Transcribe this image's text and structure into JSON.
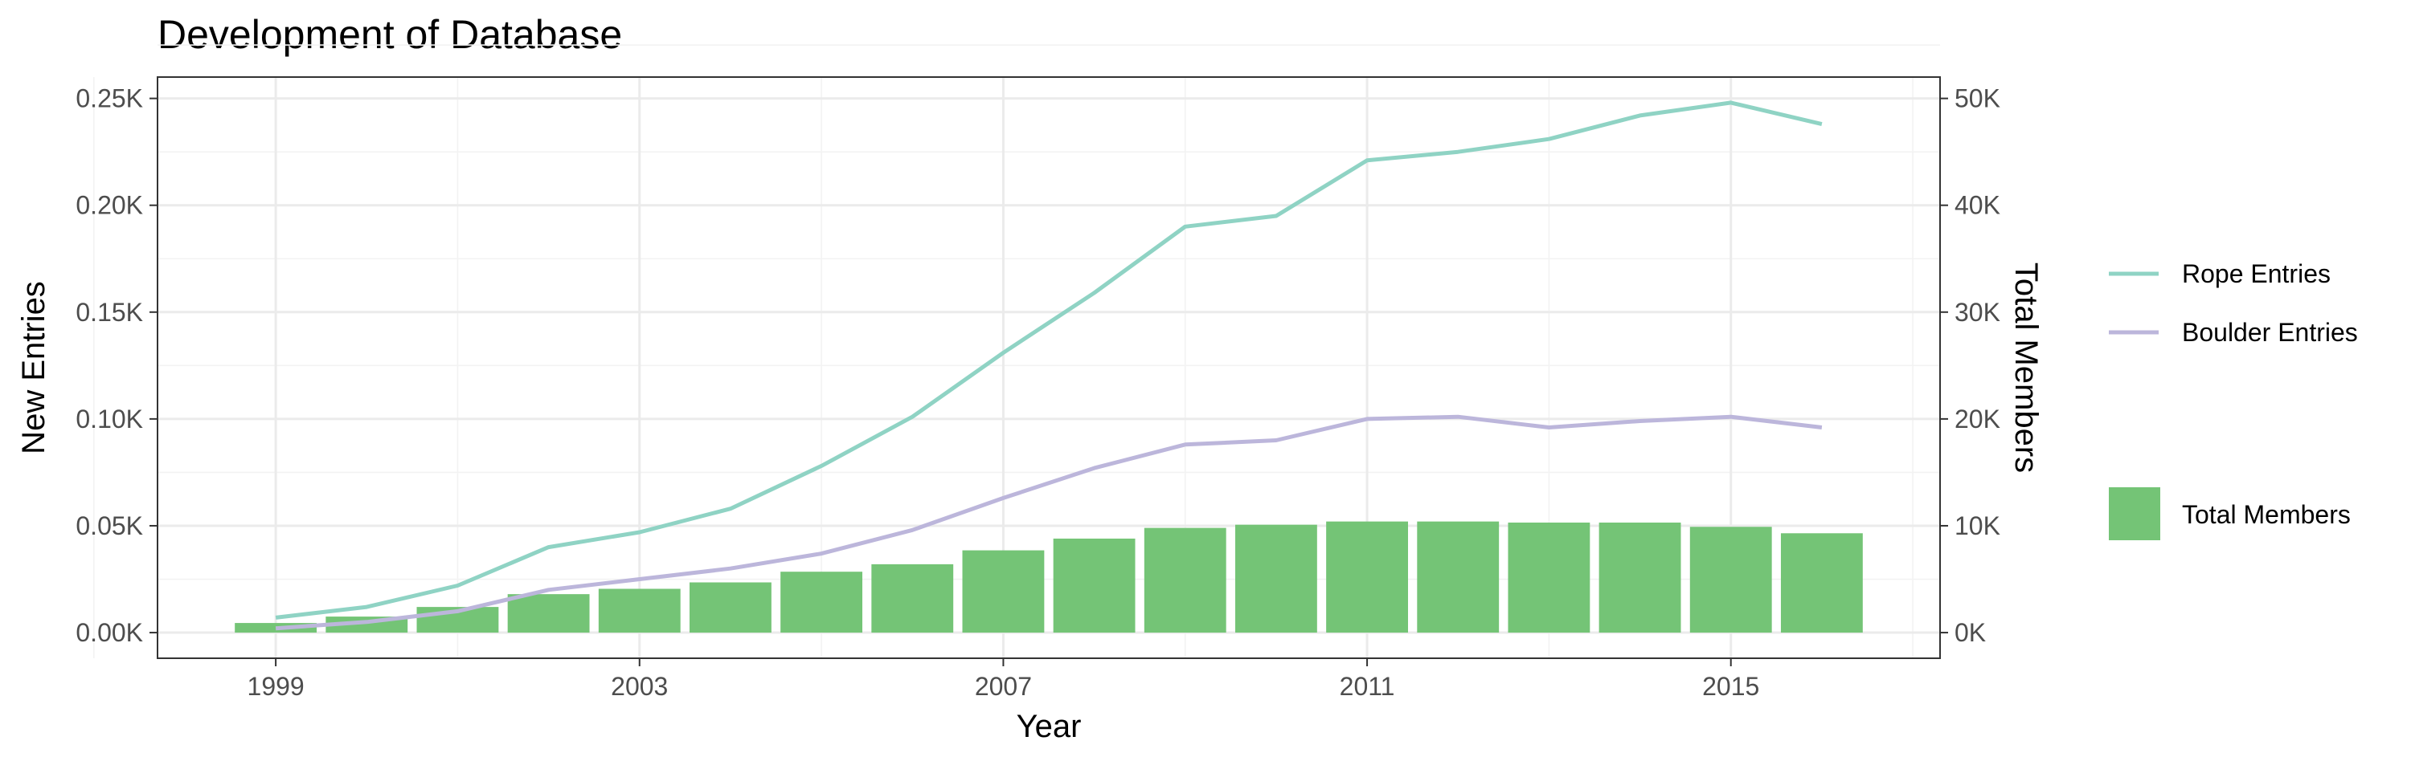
{
  "colors": {
    "rope": "#8fd3c4",
    "boulder": "#bcb6db",
    "members": "#74c476"
  },
  "chart_data": {
    "type": "bar",
    "title": "Development of Database",
    "xlabel": "Year",
    "ylabel": "New Entries",
    "y2label": "Total Members",
    "xlim": [
      1997.7,
      2017.3
    ],
    "ylim": [
      -0.012,
      0.26
    ],
    "y2lim": [
      -2400,
      52000
    ],
    "x_ticks": [
      1999,
      2003,
      2007,
      2011,
      2015
    ],
    "x_tick_labels": [
      "1999",
      "2003",
      "2007",
      "2011",
      "2015"
    ],
    "y_ticks": [
      0,
      0.05,
      0.1,
      0.15,
      0.2,
      0.25
    ],
    "y_tick_labels": [
      "0.00K",
      "0.05K",
      "0.10K",
      "0.15K",
      "0.20K",
      "0.25K"
    ],
    "y2_ticks": [
      0,
      10000,
      20000,
      30000,
      40000,
      50000
    ],
    "y2_tick_labels": [
      "0K",
      "10K",
      "20K",
      "30K",
      "40K",
      "50K"
    ],
    "x": [
      1999,
      2000,
      2001,
      2002,
      2003,
      2004,
      2005,
      2006,
      2007,
      2008,
      2009,
      2010,
      2011,
      2012,
      2013,
      2014,
      2015,
      2016
    ],
    "series": [
      {
        "name": "Rope Entries",
        "kind": "line",
        "axis": "left",
        "color_key": "rope",
        "values": [
          0.007,
          0.012,
          0.022,
          0.04,
          0.047,
          0.058,
          0.078,
          0.101,
          0.131,
          0.159,
          0.19,
          0.195,
          0.221,
          0.225,
          0.231,
          0.242,
          0.248,
          0.238
        ]
      },
      {
        "name": "Boulder Entries",
        "kind": "line",
        "axis": "left",
        "color_key": "boulder",
        "values": [
          0.002,
          0.005,
          0.01,
          0.02,
          0.025,
          0.03,
          0.037,
          0.048,
          0.063,
          0.077,
          0.088,
          0.09,
          0.1,
          0.101,
          0.096,
          0.099,
          0.101,
          0.096
        ]
      },
      {
        "name": "Total Members",
        "kind": "bar",
        "axis": "right",
        "color_key": "members",
        "values": [
          900,
          1500,
          2400,
          3600,
          4100,
          4700,
          5700,
          6400,
          7700,
          8800,
          9800,
          10100,
          10400,
          10400,
          10300,
          10300,
          9900,
          9300
        ]
      }
    ],
    "legend_position": "right",
    "grid": true
  }
}
